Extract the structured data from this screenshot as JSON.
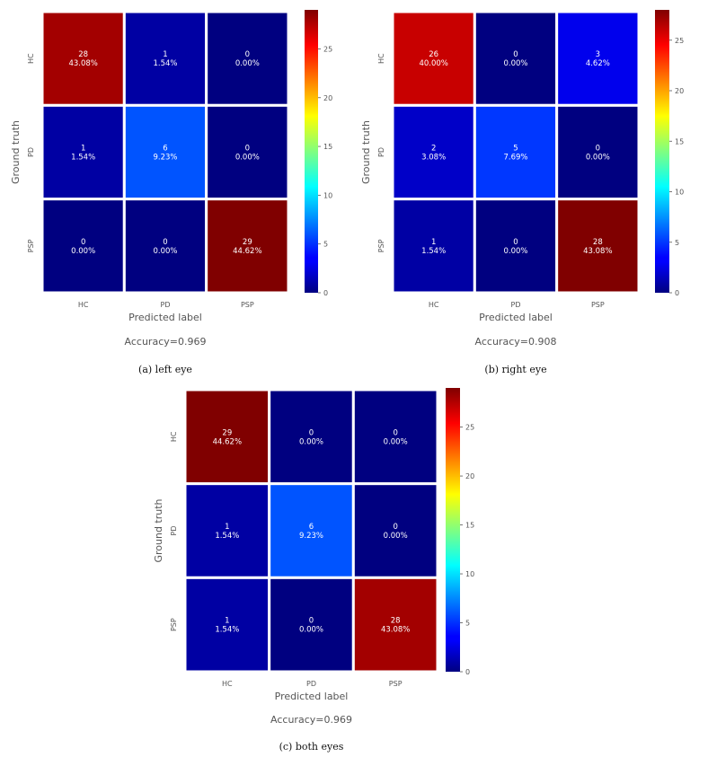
{
  "chart_data": [
    {
      "type": "heatmap",
      "caption": "(a)  left  eye",
      "xlabel": "Predicted label",
      "ylabel": "Ground truth",
      "x_categories": [
        "HC",
        "PD",
        "PSP"
      ],
      "y_categories": [
        "HC",
        "PD",
        "PSP"
      ],
      "counts": [
        [
          28,
          1,
          0
        ],
        [
          1,
          6,
          0
        ],
        [
          0,
          0,
          29
        ]
      ],
      "percents": [
        [
          "43.08%",
          "1.54%",
          "0.00%"
        ],
        [
          "1.54%",
          "9.23%",
          "0.00%"
        ],
        [
          "0.00%",
          "0.00%",
          "44.62%"
        ]
      ],
      "colorbar": {
        "min": 0,
        "max": 29,
        "ticks": [
          0,
          5,
          10,
          15,
          20,
          25
        ]
      },
      "accuracy_text": "Accuracy=0.969"
    },
    {
      "type": "heatmap",
      "caption": "(b)  right  eye",
      "xlabel": "Predicted label",
      "ylabel": "Ground truth",
      "x_categories": [
        "HC",
        "PD",
        "PSP"
      ],
      "y_categories": [
        "HC",
        "PD",
        "PSP"
      ],
      "counts": [
        [
          26,
          0,
          3
        ],
        [
          2,
          5,
          0
        ],
        [
          1,
          0,
          28
        ]
      ],
      "percents": [
        [
          "40.00%",
          "0.00%",
          "4.62%"
        ],
        [
          "3.08%",
          "7.69%",
          "0.00%"
        ],
        [
          "1.54%",
          "0.00%",
          "43.08%"
        ]
      ],
      "colorbar": {
        "min": 0,
        "max": 28,
        "ticks": [
          0,
          5,
          10,
          15,
          20,
          25
        ]
      },
      "accuracy_text": "Accuracy=0.908"
    },
    {
      "type": "heatmap",
      "caption": "(c)  both  eyes",
      "xlabel": "Predicted label",
      "ylabel": "Ground truth",
      "x_categories": [
        "HC",
        "PD",
        "PSP"
      ],
      "y_categories": [
        "HC",
        "PD",
        "PSP"
      ],
      "counts": [
        [
          29,
          0,
          0
        ],
        [
          1,
          6,
          0
        ],
        [
          1,
          0,
          28
        ]
      ],
      "percents": [
        [
          "44.62%",
          "0.00%",
          "0.00%"
        ],
        [
          "1.54%",
          "9.23%",
          "0.00%"
        ],
        [
          "1.54%",
          "0.00%",
          "43.08%"
        ]
      ],
      "colorbar": {
        "min": 0,
        "max": 29,
        "ticks": [
          0,
          5,
          10,
          15,
          20,
          25
        ]
      },
      "accuracy_text": "Accuracy=0.969"
    }
  ]
}
